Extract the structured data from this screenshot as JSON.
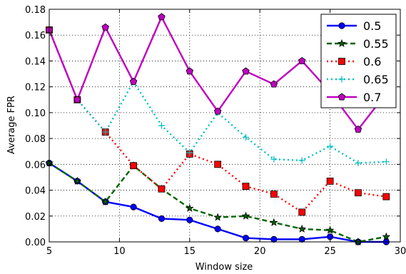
{
  "chart_data": {
    "type": "line",
    "xlabel": "Window size",
    "ylabel": "Average FPR",
    "xlim": [
      5,
      30
    ],
    "ylim": [
      0.0,
      0.18
    ],
    "xticks": [
      "5",
      "10",
      "15",
      "20",
      "25",
      "30"
    ],
    "yticks": [
      "0.00",
      "0.02",
      "0.04",
      "0.06",
      "0.08",
      "0.10",
      "0.12",
      "0.14",
      "0.16",
      "0.18"
    ],
    "grid": true,
    "legend_position": "top-right",
    "x": [
      5,
      7,
      9,
      11,
      13,
      15,
      17,
      19,
      21,
      23,
      25,
      27,
      29
    ],
    "series": [
      {
        "name": "0.5",
        "color": "#0000ff",
        "line_style": "solid",
        "marker": "circle",
        "values": [
          0.061,
          0.047,
          0.031,
          0.027,
          0.018,
          0.017,
          0.01,
          0.003,
          0.002,
          0.002,
          0.004,
          0.0,
          0.0
        ]
      },
      {
        "name": "0.55",
        "color": "#006400",
        "line_style": "dashed",
        "marker": "star",
        "values": [
          0.061,
          0.047,
          0.031,
          0.059,
          0.041,
          0.026,
          0.019,
          0.02,
          0.015,
          0.01,
          0.009,
          0.0,
          0.004
        ]
      },
      {
        "name": "0.6",
        "color": "#ff0000",
        "line_style": "dotted",
        "marker": "square",
        "values": [
          0.164,
          0.11,
          0.085,
          0.059,
          0.041,
          0.068,
          0.06,
          0.043,
          0.037,
          0.023,
          0.047,
          0.038,
          0.035
        ]
      },
      {
        "name": "0.65",
        "color": "#00bfbf",
        "line_style": "dotted",
        "marker": "plus",
        "values": [
          0.164,
          0.11,
          0.085,
          0.124,
          0.09,
          0.069,
          0.1,
          0.081,
          0.064,
          0.063,
          0.074,
          0.061,
          0.062
        ]
      },
      {
        "name": "0.7",
        "color": "#bf00bf",
        "line_style": "solid",
        "marker": "pentagon",
        "values": [
          0.164,
          0.11,
          0.166,
          0.124,
          0.174,
          0.132,
          0.101,
          0.132,
          0.122,
          0.14,
          0.116,
          0.087,
          0.115
        ]
      }
    ]
  }
}
